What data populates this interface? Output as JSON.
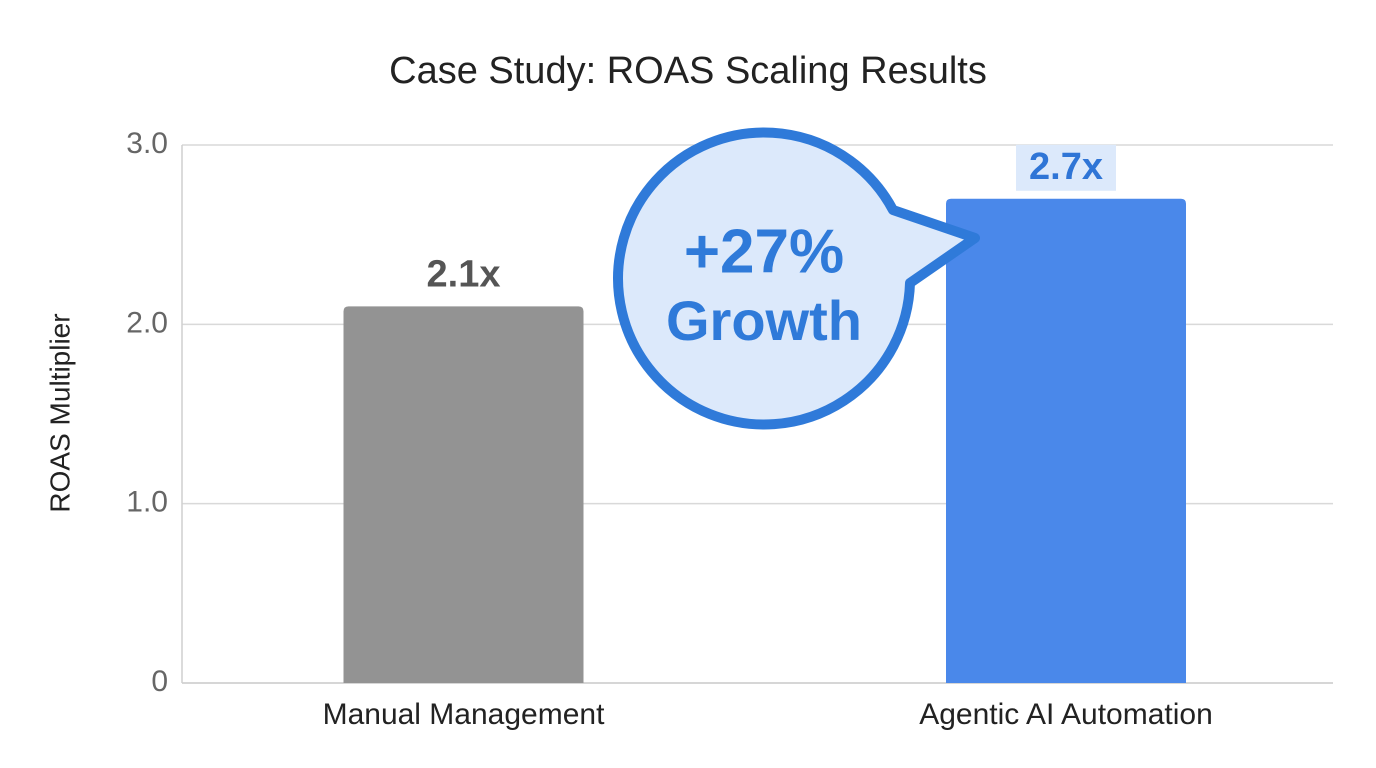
{
  "chart_data": {
    "type": "bar",
    "title": "Case Study: ROAS Scaling Results",
    "y_label": "ROAS Multiplier",
    "categories": [
      "Manual Management",
      "Agentic AI Automation"
    ],
    "values": [
      2.1,
      2.7
    ],
    "value_labels": [
      "2.1x",
      "2.7x"
    ],
    "colors": [
      "#939393",
      "#4a88ea"
    ],
    "ylim": [
      0,
      3
    ],
    "yticks": [
      0,
      {
        "value": 1,
        "label": "1.0"
      },
      {
        "value": 2,
        "label": "2.0"
      },
      {
        "value": 3,
        "label": "3.0"
      }
    ],
    "grid": true,
    "annotation": [
      "+27%",
      "Growth"
    ]
  }
}
